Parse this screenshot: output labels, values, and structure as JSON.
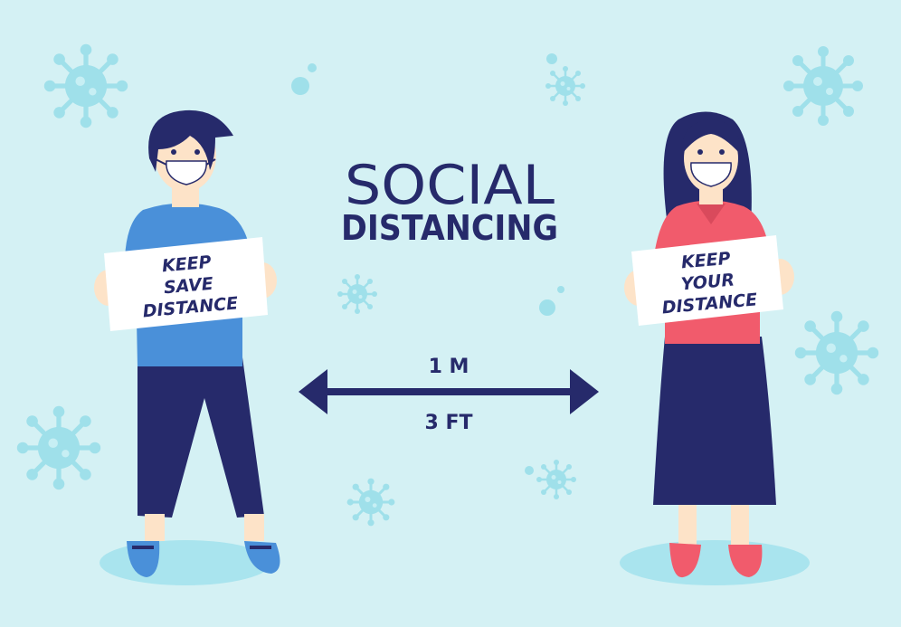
{
  "title": {
    "line1": "SOCIAL",
    "line2": "DISTANCING"
  },
  "distance": {
    "metric": "1 M",
    "imperial": "3 FT"
  },
  "man_sign": {
    "line1": "KEEP",
    "line2": "SAVE",
    "line3": "DISTANCE"
  },
  "woman_sign": {
    "line1": "KEEP",
    "line2": "YOUR",
    "line3": "DISTANCE"
  },
  "colors": {
    "background": "#d4f1f4",
    "virus": "#9fe0ea",
    "navy": "#262a6b",
    "shirt_blue": "#4a90d9",
    "shirt_red": "#f15b6c",
    "skin": "#fde3c8",
    "shadow": "#a9e4ee"
  }
}
